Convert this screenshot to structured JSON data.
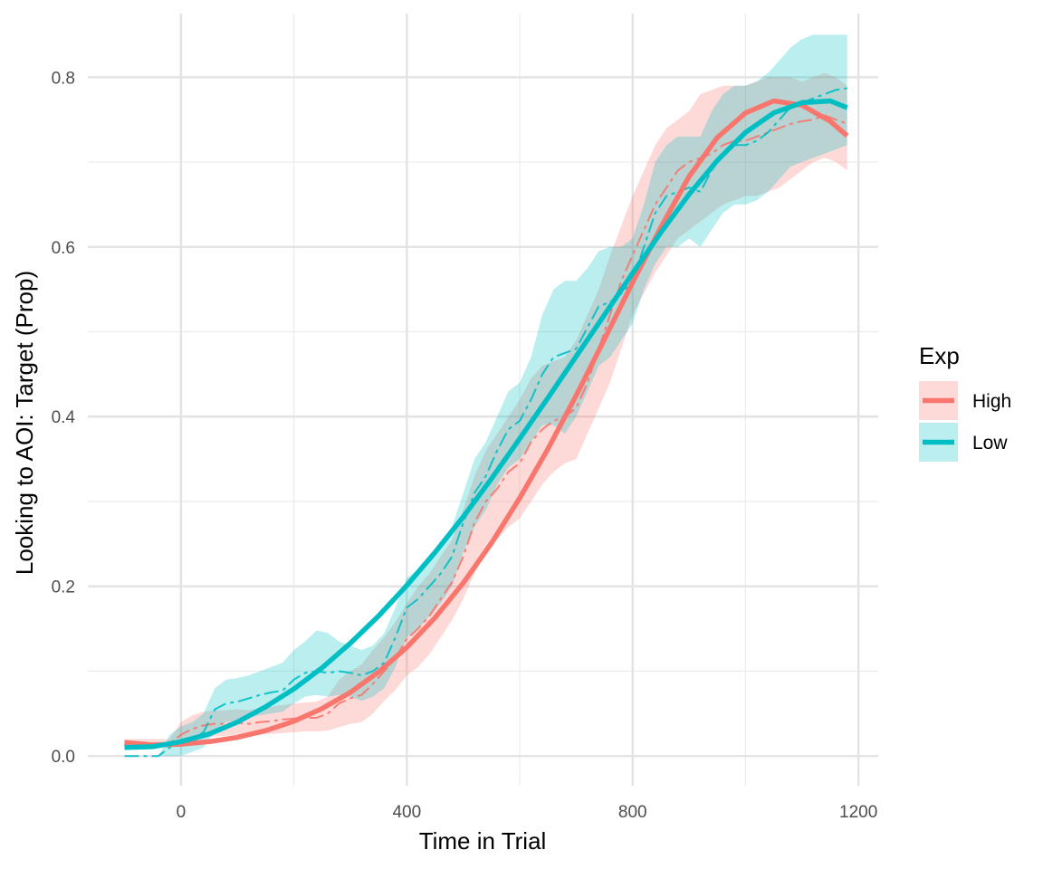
{
  "chart_data": {
    "type": "line",
    "title": "",
    "xlabel": "Time in Trial",
    "ylabel": "Looking to AOI:  Target (Prop)",
    "xlim": [
      -165,
      1235
    ],
    "ylim": [
      -0.035,
      0.875
    ],
    "x_ticks": [
      0,
      400,
      800,
      1200
    ],
    "x_tick_labels": [
      "0",
      "400",
      "800",
      "1200"
    ],
    "x_minor_ticks": [
      200,
      600,
      1000
    ],
    "y_ticks": [
      0.0,
      0.2,
      0.4,
      0.6,
      0.8
    ],
    "y_tick_labels": [
      "0.0",
      "0.2",
      "0.4",
      "0.6",
      "0.8"
    ],
    "y_minor_ticks": [
      0.1,
      0.3,
      0.5,
      0.7
    ],
    "grid": true,
    "legend": {
      "title": "Exp",
      "position": "right",
      "entries": [
        "High",
        "Low"
      ]
    },
    "series": [
      {
        "name": "High",
        "color": "#F8766D",
        "fill_color": "#F8766D",
        "observed": {
          "x": [
            -100,
            -60,
            -20,
            0,
            20,
            40,
            60,
            80,
            100,
            120,
            140,
            160,
            180,
            200,
            220,
            240,
            260,
            280,
            300,
            320,
            340,
            360,
            380,
            400,
            420,
            440,
            460,
            480,
            500,
            520,
            540,
            560,
            580,
            600,
            620,
            640,
            660,
            680,
            700,
            720,
            740,
            760,
            780,
            800,
            820,
            840,
            860,
            880,
            900,
            920,
            940,
            960,
            980,
            1000,
            1020,
            1040,
            1060,
            1080,
            1100,
            1120,
            1140,
            1160,
            1180
          ],
          "y": [
            0.015,
            0.015,
            0.015,
            0.025,
            0.032,
            0.036,
            0.038,
            0.038,
            0.039,
            0.038,
            0.04,
            0.041,
            0.043,
            0.044,
            0.045,
            0.045,
            0.05,
            0.062,
            0.068,
            0.072,
            0.085,
            0.1,
            0.115,
            0.138,
            0.15,
            0.165,
            0.185,
            0.205,
            0.235,
            0.275,
            0.3,
            0.315,
            0.335,
            0.345,
            0.37,
            0.385,
            0.395,
            0.4,
            0.41,
            0.44,
            0.48,
            0.52,
            0.56,
            0.59,
            0.62,
            0.65,
            0.67,
            0.69,
            0.7,
            0.705,
            0.71,
            0.72,
            0.725,
            0.725,
            0.73,
            0.735,
            0.74,
            0.745,
            0.748,
            0.75,
            0.755,
            0.75,
            0.745
          ],
          "lower": [
            0.01,
            0.01,
            0.01,
            0.015,
            0.02,
            0.022,
            0.023,
            0.024,
            0.025,
            0.024,
            0.025,
            0.026,
            0.027,
            0.028,
            0.029,
            0.029,
            0.03,
            0.034,
            0.038,
            0.04,
            0.05,
            0.065,
            0.078,
            0.095,
            0.105,
            0.12,
            0.14,
            0.16,
            0.185,
            0.215,
            0.24,
            0.255,
            0.27,
            0.28,
            0.3,
            0.32,
            0.335,
            0.345,
            0.35,
            0.38,
            0.41,
            0.44,
            0.48,
            0.52,
            0.545,
            0.57,
            0.59,
            0.61,
            0.62,
            0.63,
            0.64,
            0.65,
            0.655,
            0.66,
            0.66,
            0.665,
            0.67,
            0.68,
            0.69,
            0.7,
            0.705,
            0.7,
            0.69
          ],
          "upper": [
            0.02,
            0.02,
            0.02,
            0.04,
            0.048,
            0.052,
            0.054,
            0.054,
            0.055,
            0.054,
            0.056,
            0.058,
            0.06,
            0.062,
            0.063,
            0.064,
            0.07,
            0.09,
            0.1,
            0.108,
            0.125,
            0.14,
            0.158,
            0.18,
            0.2,
            0.215,
            0.235,
            0.255,
            0.29,
            0.33,
            0.36,
            0.38,
            0.4,
            0.42,
            0.445,
            0.46,
            0.465,
            0.47,
            0.49,
            0.52,
            0.55,
            0.59,
            0.625,
            0.66,
            0.69,
            0.72,
            0.74,
            0.75,
            0.76,
            0.78,
            0.785,
            0.79,
            0.79,
            0.79,
            0.795,
            0.8,
            0.8,
            0.8,
            0.795,
            0.8,
            0.805,
            0.8,
            0.79
          ]
        },
        "fit": {
          "x": [
            -100,
            -50,
            0,
            50,
            100,
            150,
            200,
            250,
            300,
            350,
            400,
            450,
            500,
            550,
            600,
            650,
            700,
            750,
            800,
            850,
            900,
            950,
            1000,
            1050,
            1100,
            1150,
            1180
          ],
          "y": [
            0.016,
            0.013,
            0.014,
            0.017,
            0.022,
            0.03,
            0.041,
            0.056,
            0.075,
            0.099,
            0.128,
            0.163,
            0.204,
            0.251,
            0.304,
            0.362,
            0.425,
            0.491,
            0.558,
            0.623,
            0.683,
            0.729,
            0.758,
            0.772,
            0.767,
            0.748,
            0.731
          ]
        }
      },
      {
        "name": "Low",
        "color": "#00BFC4",
        "fill_color": "#00BFC4",
        "observed": {
          "x": [
            -100,
            -60,
            -40,
            -20,
            0,
            20,
            40,
            60,
            80,
            100,
            120,
            140,
            160,
            180,
            200,
            220,
            240,
            260,
            280,
            300,
            320,
            340,
            360,
            380,
            400,
            420,
            440,
            460,
            480,
            500,
            520,
            540,
            560,
            580,
            600,
            620,
            640,
            660,
            680,
            700,
            720,
            740,
            760,
            780,
            800,
            820,
            840,
            860,
            880,
            900,
            920,
            940,
            960,
            980,
            1000,
            1020,
            1040,
            1060,
            1080,
            1100,
            1120,
            1140,
            1160,
            1180
          ],
          "y": [
            0.0,
            0.0,
            0.0,
            0.01,
            0.015,
            0.02,
            0.028,
            0.055,
            0.062,
            0.064,
            0.068,
            0.072,
            0.075,
            0.077,
            0.09,
            0.098,
            0.1,
            0.098,
            0.1,
            0.098,
            0.095,
            0.1,
            0.11,
            0.14,
            0.175,
            0.185,
            0.2,
            0.215,
            0.235,
            0.275,
            0.31,
            0.33,
            0.36,
            0.385,
            0.395,
            0.42,
            0.45,
            0.47,
            0.475,
            0.48,
            0.505,
            0.53,
            0.535,
            0.545,
            0.56,
            0.6,
            0.64,
            0.66,
            0.665,
            0.67,
            0.665,
            0.69,
            0.71,
            0.72,
            0.72,
            0.725,
            0.735,
            0.75,
            0.765,
            0.77,
            0.775,
            0.78,
            0.785,
            0.787
          ],
          "lower": [
            0.0,
            0.0,
            0.0,
            0.0,
            0.0,
            0.005,
            0.01,
            0.03,
            0.04,
            0.042,
            0.045,
            0.048,
            0.05,
            0.052,
            0.062,
            0.07,
            0.072,
            0.07,
            0.072,
            0.07,
            0.065,
            0.07,
            0.08,
            0.105,
            0.14,
            0.15,
            0.165,
            0.18,
            0.2,
            0.24,
            0.27,
            0.29,
            0.32,
            0.34,
            0.35,
            0.37,
            0.39,
            0.39,
            0.38,
            0.4,
            0.43,
            0.46,
            0.47,
            0.49,
            0.51,
            0.55,
            0.58,
            0.6,
            0.6,
            0.61,
            0.6,
            0.62,
            0.64,
            0.65,
            0.65,
            0.655,
            0.665,
            0.68,
            0.695,
            0.7,
            0.705,
            0.71,
            0.715,
            0.72
          ],
          "upper": [
            0.0,
            0.0,
            0.0,
            0.025,
            0.035,
            0.04,
            0.05,
            0.08,
            0.09,
            0.092,
            0.095,
            0.1,
            0.105,
            0.11,
            0.125,
            0.135,
            0.148,
            0.145,
            0.135,
            0.13,
            0.125,
            0.13,
            0.145,
            0.175,
            0.21,
            0.22,
            0.235,
            0.25,
            0.27,
            0.31,
            0.35,
            0.37,
            0.4,
            0.43,
            0.44,
            0.47,
            0.52,
            0.55,
            0.56,
            0.56,
            0.575,
            0.595,
            0.6,
            0.6,
            0.61,
            0.65,
            0.7,
            0.72,
            0.73,
            0.73,
            0.73,
            0.76,
            0.78,
            0.79,
            0.79,
            0.795,
            0.805,
            0.82,
            0.835,
            0.845,
            0.85,
            0.85,
            0.85,
            0.85
          ]
        },
        "fit": {
          "x": [
            -100,
            -50,
            0,
            50,
            100,
            150,
            200,
            250,
            300,
            350,
            400,
            450,
            500,
            550,
            600,
            650,
            700,
            750,
            800,
            850,
            900,
            950,
            1000,
            1050,
            1100,
            1150,
            1180
          ],
          "y": [
            0.01,
            0.011,
            0.017,
            0.026,
            0.04,
            0.058,
            0.079,
            0.104,
            0.133,
            0.165,
            0.201,
            0.24,
            0.282,
            0.327,
            0.374,
            0.422,
            0.471,
            0.52,
            0.569,
            0.617,
            0.662,
            0.702,
            0.735,
            0.758,
            0.77,
            0.772,
            0.764
          ]
        }
      }
    ]
  }
}
